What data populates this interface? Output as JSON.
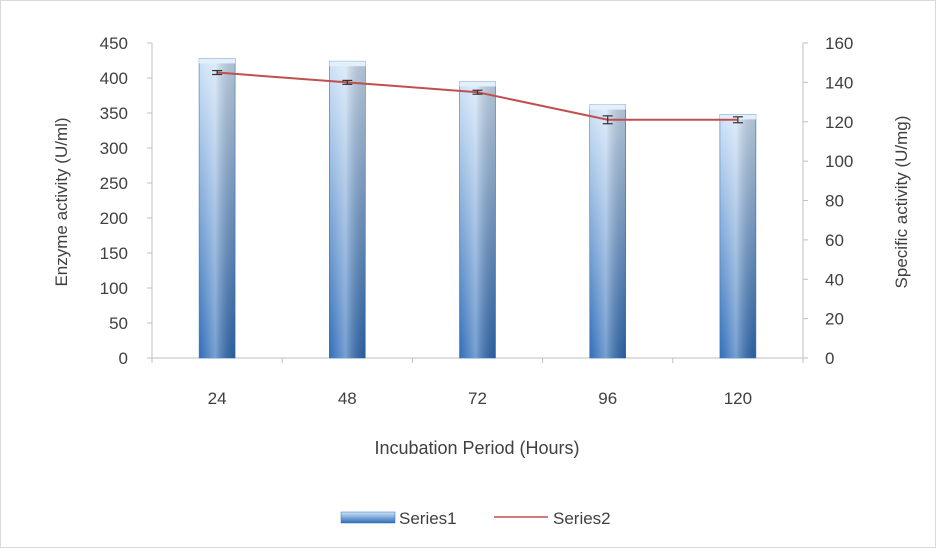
{
  "chart_data": {
    "type": "bar",
    "categories": [
      "24",
      "48",
      "72",
      "96",
      "120"
    ],
    "series": [
      {
        "name": "Series1",
        "type": "bar",
        "axis": "left",
        "values": [
          428,
          424,
          395,
          362,
          348
        ]
      },
      {
        "name": "Series2",
        "type": "line",
        "axis": "right",
        "values": [
          145,
          140,
          135,
          121,
          121
        ],
        "error": [
          1,
          1,
          1,
          2,
          1.5
        ]
      }
    ],
    "xlabel": "Incubation Period (Hours)",
    "ylabel": "Enzyme activity (U/ml)",
    "y2label": "Specific activity (U/mg)",
    "ylim": [
      0,
      450
    ],
    "yticks": [
      "0",
      "50",
      "100",
      "150",
      "200",
      "250",
      "300",
      "350",
      "400",
      "450"
    ],
    "y2lim": [
      0,
      160
    ],
    "y2ticks": [
      "0",
      "20",
      "40",
      "60",
      "80",
      "100",
      "120",
      "140",
      "160"
    ],
    "legend_position": "bottom",
    "grid": false,
    "colors": {
      "bar_top": "#cfe3f8",
      "bar_bottom": "#2f6db8",
      "line": "#c0504d",
      "axis": "#bfbfbf"
    }
  }
}
